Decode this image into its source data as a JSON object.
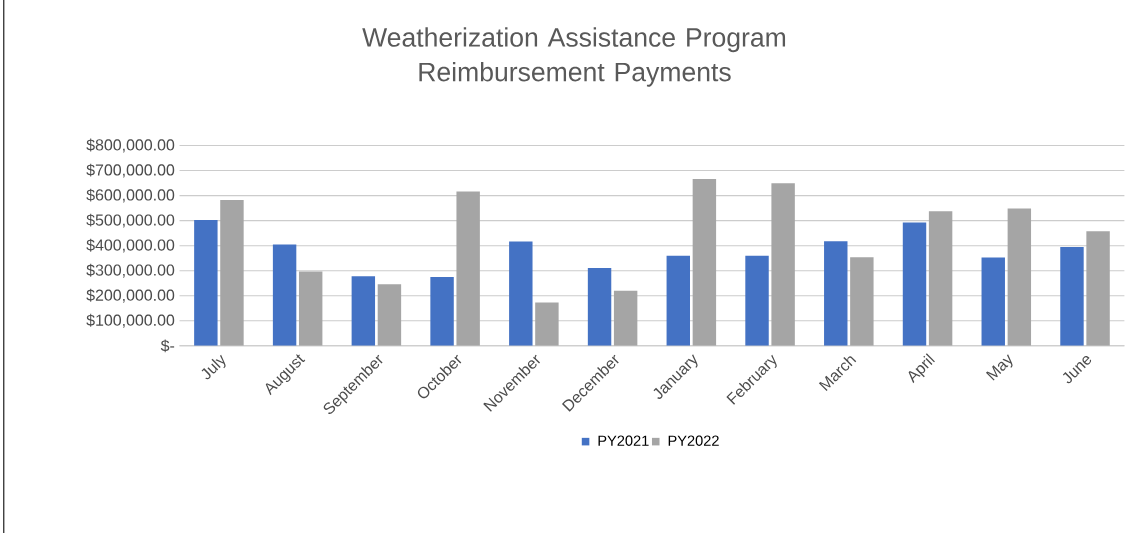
{
  "chart_data": {
    "type": "bar",
    "title": "Weatherization Assistance Program Reimbursement Payments",
    "categories": [
      "July",
      "August",
      "September",
      "October",
      "November",
      "December",
      "January",
      "February",
      "March",
      "April",
      "May",
      "June"
    ],
    "series": [
      {
        "name": "PY2021",
        "color": "#4472c4",
        "values": [
          503000,
          405000,
          278000,
          275000,
          417000,
          311000,
          360000,
          360000,
          418000,
          493000,
          353000,
          395000
        ]
      },
      {
        "name": "PY2022",
        "color": "#a5a5a5",
        "values": [
          582000,
          297000,
          246000,
          616000,
          173000,
          220000,
          666000,
          649000,
          354000,
          537000,
          548000,
          458000
        ]
      }
    ],
    "ylim": [
      0,
      800000
    ],
    "yticks": [
      {
        "value": 0,
        "label": "$-"
      },
      {
        "value": 100000,
        "label": "$100,000.00"
      },
      {
        "value": 200000,
        "label": "$200,000.00"
      },
      {
        "value": 300000,
        "label": "$300,000.00"
      },
      {
        "value": 400000,
        "label": "$400,000.00"
      },
      {
        "value": 500000,
        "label": "$500,000.00"
      },
      {
        "value": 600000,
        "label": "$600,000.00"
      },
      {
        "value": 700000,
        "label": "$700,000.00"
      },
      {
        "value": 800000,
        "label": "$800,000.00"
      }
    ],
    "grid": "y",
    "legend": "bottom"
  }
}
